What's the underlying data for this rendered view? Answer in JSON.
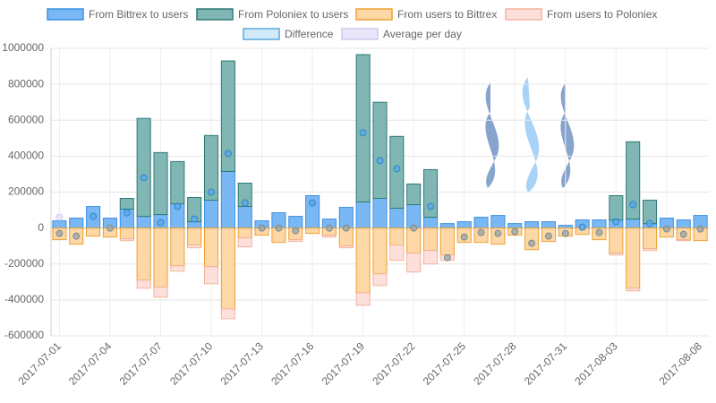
{
  "chart_data": {
    "type": "bar",
    "categories": [
      "2017-07-01",
      null,
      null,
      "2017-07-04",
      null,
      null,
      "2017-07-07",
      null,
      null,
      "2017-07-10",
      null,
      null,
      "2017-07-13",
      null,
      null,
      "2017-07-16",
      null,
      null,
      "2017-07-19",
      null,
      null,
      "2017-07-22",
      null,
      null,
      "2017-07-25",
      null,
      null,
      "2017-07-28",
      null,
      null,
      "2017-07-31",
      null,
      null,
      "2017-08-03",
      null,
      null,
      null,
      null,
      "2017-08-08"
    ],
    "series": [
      {
        "name": "From Bittrex to users",
        "color": "#7ab8f5",
        "border": "#3d8fe0",
        "stack": "out",
        "values": [
          40000,
          55000,
          120000,
          55000,
          105000,
          65000,
          75000,
          135000,
          35000,
          155000,
          315000,
          120000,
          40000,
          85000,
          65000,
          180000,
          50000,
          115000,
          145000,
          165000,
          110000,
          130000,
          60000,
          25000,
          35000,
          60000,
          70000,
          25000,
          35000,
          35000,
          15000,
          45000,
          45000,
          45000,
          50000,
          25000,
          55000,
          45000,
          70000
        ]
      },
      {
        "name": "From Poloniex to users",
        "color": "#80b6b3",
        "border": "#2e7a76",
        "stack": "out",
        "values": [
          0,
          0,
          0,
          0,
          60000,
          545000,
          345000,
          235000,
          135000,
          360000,
          615000,
          130000,
          0,
          0,
          0,
          0,
          0,
          0,
          820000,
          535000,
          400000,
          115000,
          265000,
          0,
          0,
          0,
          0,
          0,
          0,
          0,
          0,
          0,
          0,
          135000,
          430000,
          130000,
          0,
          0,
          0
        ]
      },
      {
        "name": "From users to Bittrex",
        "color": "#fdd8a6",
        "border": "#eea032",
        "stack": "in",
        "values": [
          -65000,
          -90000,
          -45000,
          -50000,
          -60000,
          -290000,
          -330000,
          -210000,
          -95000,
          -215000,
          -450000,
          -55000,
          -40000,
          -80000,
          -65000,
          -30000,
          -40000,
          -100000,
          -360000,
          -255000,
          -95000,
          -140000,
          -125000,
          -150000,
          -80000,
          -80000,
          -90000,
          -40000,
          -120000,
          -75000,
          -45000,
          -35000,
          -65000,
          -140000,
          -335000,
          -115000,
          -50000,
          -65000,
          -70000
        ]
      },
      {
        "name": "From users to Poloniex",
        "color": "#fde0dc",
        "border": "#f3b49c",
        "stack": "in",
        "values": [
          0,
          0,
          0,
          0,
          -10000,
          -45000,
          -55000,
          -30000,
          -15000,
          -95000,
          -55000,
          -50000,
          0,
          0,
          -10000,
          0,
          -10000,
          -10000,
          -70000,
          -65000,
          -85000,
          -105000,
          -75000,
          -30000,
          0,
          0,
          0,
          0,
          0,
          0,
          0,
          0,
          0,
          -10000,
          -15000,
          -10000,
          0,
          -5000,
          0
        ]
      },
      {
        "name": "Difference",
        "color": "#d2e9f9",
        "border": "#5aa9dc",
        "line": "#2a8ab0",
        "kind": "line",
        "values": [
          -30000,
          -45000,
          65000,
          0,
          85000,
          280000,
          30000,
          120000,
          50000,
          200000,
          415000,
          140000,
          0,
          0,
          -15000,
          140000,
          0,
          0,
          530000,
          375000,
          330000,
          0,
          120000,
          -165000,
          -50000,
          -25000,
          -30000,
          -20000,
          -85000,
          -45000,
          -30000,
          5000,
          -25000,
          35000,
          130000,
          25000,
          -5000,
          -35000,
          -5000
        ]
      },
      {
        "name": "Average per day",
        "color": "#e9e6f9",
        "border": "#cfc8ef",
        "kind": "point",
        "values": [
          60000,
          null,
          null,
          null,
          null,
          null,
          null,
          null,
          null,
          null,
          null,
          null,
          null,
          null,
          null,
          null,
          null,
          null,
          null,
          null,
          null,
          null,
          null,
          null,
          null,
          null,
          null,
          null,
          null,
          null,
          null,
          null,
          null,
          null,
          null,
          null,
          null,
          null,
          null
        ]
      }
    ],
    "ylim": [
      -600000,
      1000000
    ],
    "yticks": [
      -600000,
      -400000,
      -200000,
      0,
      200000,
      400000,
      600000,
      800000,
      1000000
    ],
    "grid": true,
    "legend": "top"
  }
}
